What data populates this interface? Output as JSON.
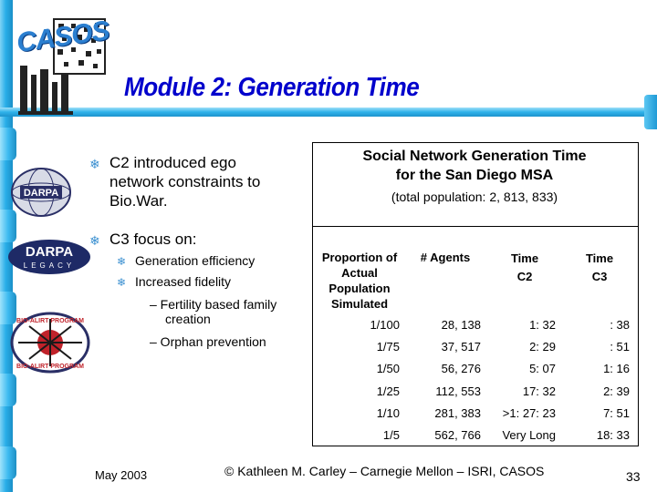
{
  "slide": {
    "logo_text": "CASOS",
    "title": "Module 2: Generation Time",
    "emblems": [
      "DARPA",
      "DARPA",
      "LEGACY",
      "BIO-ALIRT PROGRAM",
      "BIO-ALIRT PROGRAM"
    ],
    "bullets": [
      {
        "text_lines": [
          "C2 introduced ego",
          "network constraints to",
          "Bio.War."
        ]
      },
      {
        "text_lines": [
          "C3 focus on:"
        ],
        "subs": [
          "Generation efficiency",
          "Increased fidelity"
        ],
        "dashes": [
          [
            "–  Fertility based family",
            "creation"
          ],
          [
            "–  Orphan prevention"
          ]
        ]
      }
    ]
  },
  "table": {
    "title_lines": [
      "Social Network Generation Time",
      "for the San Diego MSA"
    ],
    "subtitle": "(total population: 2, 813, 833)",
    "headers": [
      [
        "Proportion of",
        "Actual",
        "Population",
        "Simulated"
      ],
      [
        "# Agents"
      ],
      [
        "Time",
        "C2"
      ],
      [
        "Time",
        "C3"
      ]
    ],
    "rows": [
      [
        "1/100",
        "28, 138",
        "1: 32",
        ": 38"
      ],
      [
        "1/75",
        "37, 517",
        "2: 29",
        ": 51"
      ],
      [
        "1/50",
        "56, 276",
        "5: 07",
        "1: 16"
      ],
      [
        "1/25",
        "112, 553",
        "17: 32",
        "2: 39"
      ],
      [
        "1/10",
        "281, 383",
        ">1: 27: 23",
        "7: 51"
      ],
      [
        "1/5",
        "562, 766",
        "Very Long",
        "18: 33"
      ]
    ]
  },
  "footer": {
    "date": "May 2003",
    "credit": "© Kathleen M. Carley – Carnegie Mellon – ISRI, CASOS",
    "page": "33"
  },
  "colors": {
    "title": "#0000cc",
    "pipe": "#29aee8",
    "bullet": "#3a8fd0"
  },
  "icons": [
    "snowflake-bullet-icon",
    "casos-logo",
    "darpa-globe-emblem",
    "darpa-legacy-emblem",
    "bio-alirt-emblem"
  ]
}
